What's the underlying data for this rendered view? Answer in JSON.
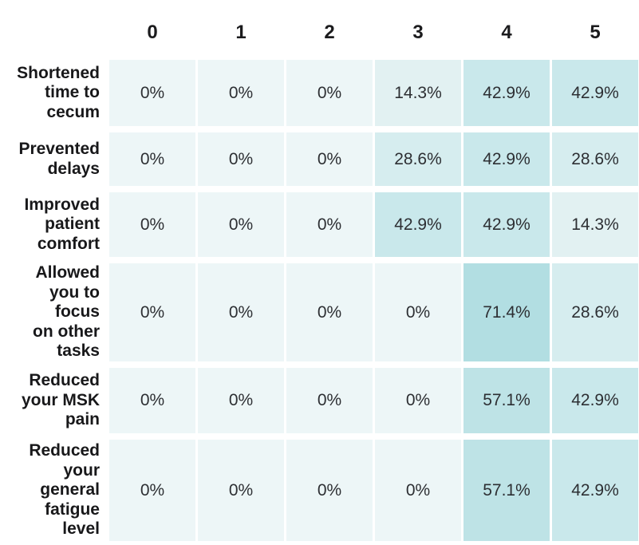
{
  "table": {
    "columns": [
      "0",
      "1",
      "2",
      "3",
      "4",
      "5"
    ],
    "rows": [
      {
        "label": "Shortened\ntime to\ncecum",
        "cells": [
          "0%",
          "0%",
          "0%",
          "14.3%",
          "42.9%",
          "42.9%"
        ]
      },
      {
        "label": "Prevented\ndelays",
        "cells": [
          "0%",
          "0%",
          "0%",
          "28.6%",
          "42.9%",
          "28.6%"
        ]
      },
      {
        "label": "Improved\npatient\ncomfort",
        "cells": [
          "0%",
          "0%",
          "0%",
          "42.9%",
          "42.9%",
          "14.3%"
        ]
      },
      {
        "label": "Allowed\nyou to\nfocus\non other\ntasks",
        "cells": [
          "0%",
          "0%",
          "0%",
          "0%",
          "71.4%",
          "28.6%"
        ]
      },
      {
        "label": "Reduced\nyour MSK\npain",
        "cells": [
          "0%",
          "0%",
          "0%",
          "0%",
          "57.1%",
          "42.9%"
        ]
      },
      {
        "label": "Reduced\nyour\ngeneral\nfatigue\nlevel",
        "cells": [
          "0%",
          "0%",
          "0%",
          "0%",
          "57.1%",
          "42.9%"
        ]
      }
    ]
  },
  "colors": {
    "background": "#ffffff",
    "label_text": "#18181a",
    "header_text": "#1b1b1d",
    "value_text": "#2d2f33",
    "by_value": {
      "0%": "#edf6f7",
      "14.3%": "#e2f1f2",
      "28.6%": "#d6edef",
      "42.9%": "#c9e8eb",
      "57.1%": "#bee3e6",
      "71.4%": "#b2dee2"
    }
  },
  "chart_data": {
    "type": "heatmap",
    "title": "",
    "xlabel": "",
    "ylabel": "",
    "unit": "%",
    "categories": [
      "0",
      "1",
      "2",
      "3",
      "4",
      "5"
    ],
    "series": [
      {
        "name": "Shortened time to cecum",
        "values": [
          0,
          0,
          0,
          14.3,
          42.9,
          42.9
        ]
      },
      {
        "name": "Prevented delays",
        "values": [
          0,
          0,
          0,
          28.6,
          42.9,
          28.6
        ]
      },
      {
        "name": "Improved patient comfort",
        "values": [
          0,
          0,
          0,
          42.9,
          42.9,
          14.3
        ]
      },
      {
        "name": "Allowed you to focus on other tasks",
        "values": [
          0,
          0,
          0,
          0,
          71.4,
          28.6
        ]
      },
      {
        "name": "Reduced your MSK pain",
        "values": [
          0,
          0,
          0,
          0,
          57.1,
          42.9
        ]
      },
      {
        "name": "Reduced your general fatigue level",
        "values": [
          0,
          0,
          0,
          0,
          57.1,
          42.9
        ]
      }
    ],
    "color_scale": {
      "min": 0,
      "max": 71.4,
      "min_color": "#edf6f7",
      "max_color": "#b2dee2"
    },
    "legend_position": "none",
    "grid": false
  }
}
